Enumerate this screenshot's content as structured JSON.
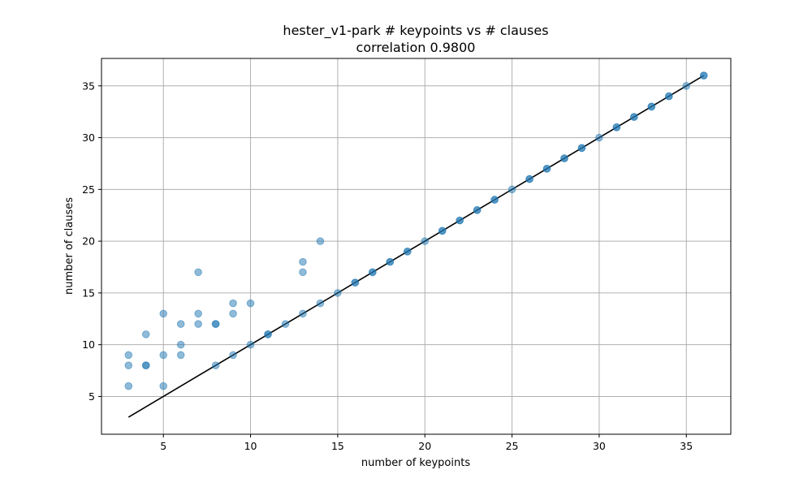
{
  "chart_data": {
    "type": "scatter",
    "title": "hester_v1-park # keypoints vs # clauses",
    "subtitle": "correlation 0.9800",
    "xlabel": "number of keypoints",
    "ylabel": "number of clauses",
    "xlim": [
      1.45,
      37.55
    ],
    "ylim": [
      1.35,
      37.65
    ],
    "xticks": [
      5,
      10,
      15,
      20,
      25,
      30,
      35
    ],
    "yticks": [
      5,
      10,
      15,
      20,
      25,
      30,
      35
    ],
    "grid": true,
    "colors": {
      "points": "#1f77b4",
      "line": "#000000",
      "grid": "#b0b0b0"
    },
    "points": [
      [
        3,
        6
      ],
      [
        3,
        8
      ],
      [
        3,
        9
      ],
      [
        4,
        8
      ],
      [
        4,
        8
      ],
      [
        4,
        11
      ],
      [
        5,
        6
      ],
      [
        5,
        9
      ],
      [
        5,
        13
      ],
      [
        6,
        9
      ],
      [
        6,
        10
      ],
      [
        6,
        12
      ],
      [
        7,
        12
      ],
      [
        7,
        13
      ],
      [
        7,
        17
      ],
      [
        8,
        8
      ],
      [
        8,
        12
      ],
      [
        8,
        12
      ],
      [
        9,
        9
      ],
      [
        9,
        13
      ],
      [
        9,
        14
      ],
      [
        10,
        10
      ],
      [
        10,
        14
      ],
      [
        11,
        11
      ],
      [
        11,
        11
      ],
      [
        12,
        12
      ],
      [
        13,
        13
      ],
      [
        13,
        17
      ],
      [
        13,
        18
      ],
      [
        14,
        14
      ],
      [
        14,
        20
      ],
      [
        15,
        15
      ],
      [
        16,
        16
      ],
      [
        16,
        16
      ],
      [
        17,
        17
      ],
      [
        17,
        17
      ],
      [
        18,
        18
      ],
      [
        18,
        18
      ],
      [
        19,
        19
      ],
      [
        19,
        19
      ],
      [
        20,
        20
      ],
      [
        21,
        21
      ],
      [
        21,
        21
      ],
      [
        22,
        22
      ],
      [
        22,
        22
      ],
      [
        23,
        23
      ],
      [
        23,
        23
      ],
      [
        24,
        24
      ],
      [
        24,
        24
      ],
      [
        25,
        25
      ],
      [
        26,
        26
      ],
      [
        26,
        26
      ],
      [
        27,
        27
      ],
      [
        27,
        27
      ],
      [
        28,
        28
      ],
      [
        28,
        28
      ],
      [
        29,
        29
      ],
      [
        29,
        29
      ],
      [
        30,
        30
      ],
      [
        31,
        31
      ],
      [
        31,
        31
      ],
      [
        32,
        32
      ],
      [
        32,
        32
      ],
      [
        33,
        33
      ],
      [
        33,
        33
      ],
      [
        34,
        34
      ],
      [
        34,
        34
      ],
      [
        35,
        35
      ],
      [
        36,
        36
      ],
      [
        36,
        36
      ]
    ],
    "fit_line": {
      "x": [
        3,
        36
      ],
      "y": [
        3,
        36
      ]
    }
  }
}
